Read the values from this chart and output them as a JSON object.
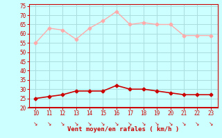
{
  "x": [
    10,
    11,
    12,
    13,
    14,
    15,
    16,
    17,
    18,
    19,
    20,
    21,
    22,
    23
  ],
  "rafales": [
    55,
    63,
    62,
    57,
    63,
    67,
    72,
    65,
    66,
    65,
    65,
    59,
    59,
    59
  ],
  "moyen": [
    25,
    26,
    27,
    29,
    29,
    29,
    32,
    30,
    30,
    29,
    28,
    27,
    27,
    27
  ],
  "rafales_color": "#ffaaaa",
  "moyen_color": "#cc0000",
  "bg_color": "#ccffff",
  "grid_color": "#aadddd",
  "xlabel": "Vent moyen/en rafales ( km/h )",
  "xlabel_color": "#cc0000",
  "tick_color": "#cc0000",
  "ylim": [
    20,
    76
  ],
  "yticks": [
    20,
    25,
    30,
    35,
    40,
    45,
    50,
    55,
    60,
    65,
    70,
    75
  ],
  "xticks": [
    10,
    11,
    12,
    13,
    14,
    15,
    16,
    17,
    18,
    19,
    20,
    21,
    22,
    23
  ]
}
